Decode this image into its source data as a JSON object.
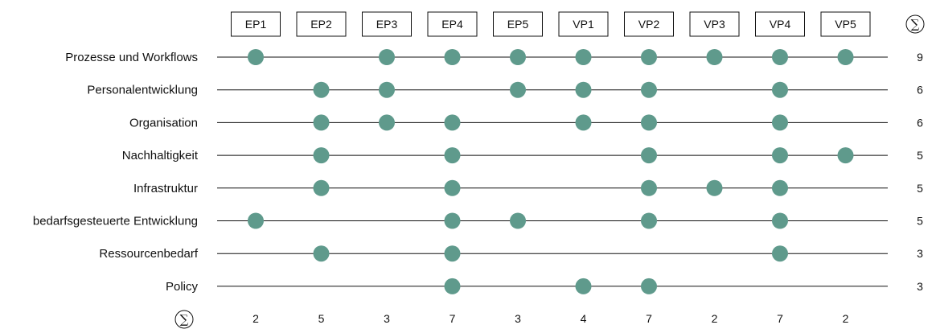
{
  "chart_data": {
    "type": "dot-matrix",
    "sum_symbol": "∑",
    "columns": [
      "EP1",
      "EP2",
      "EP3",
      "EP4",
      "EP5",
      "VP1",
      "VP2",
      "VP3",
      "VP4",
      "VP5"
    ],
    "rows": [
      {
        "label": "Prozesse und Workflows",
        "present": [
          "EP1",
          "EP3",
          "EP4",
          "EP5",
          "VP1",
          "VP2",
          "VP3",
          "VP4",
          "VP5"
        ],
        "total": "9"
      },
      {
        "label": "Personalentwicklung",
        "present": [
          "EP2",
          "EP3",
          "EP5",
          "VP1",
          "VP2",
          "VP4"
        ],
        "total": "6"
      },
      {
        "label": "Organisation",
        "present": [
          "EP2",
          "EP3",
          "EP4",
          "VP1",
          "VP2",
          "VP4"
        ],
        "total": "6"
      },
      {
        "label": "Nachhaltigkeit",
        "present": [
          "EP2",
          "EP4",
          "VP2",
          "VP4",
          "VP5"
        ],
        "total": "5"
      },
      {
        "label": "Infrastruktur",
        "present": [
          "EP2",
          "EP4",
          "VP2",
          "VP3",
          "VP4"
        ],
        "total": "5"
      },
      {
        "label": "bedarfsgesteuerte Entwicklung",
        "present": [
          "EP1",
          "EP4",
          "EP5",
          "VP2",
          "VP4"
        ],
        "total": "5"
      },
      {
        "label": "Ressourcenbedarf",
        "present": [
          "EP2",
          "EP4",
          "VP4"
        ],
        "total": "3"
      },
      {
        "label": "Policy",
        "present": [
          "EP4",
          "VP1",
          "VP2"
        ],
        "total": "3"
      }
    ],
    "column_totals": [
      "2",
      "5",
      "3",
      "7",
      "3",
      "4",
      "7",
      "2",
      "7",
      "2"
    ],
    "colors": {
      "dot": "#5f9a8c",
      "line": "#111111"
    }
  }
}
